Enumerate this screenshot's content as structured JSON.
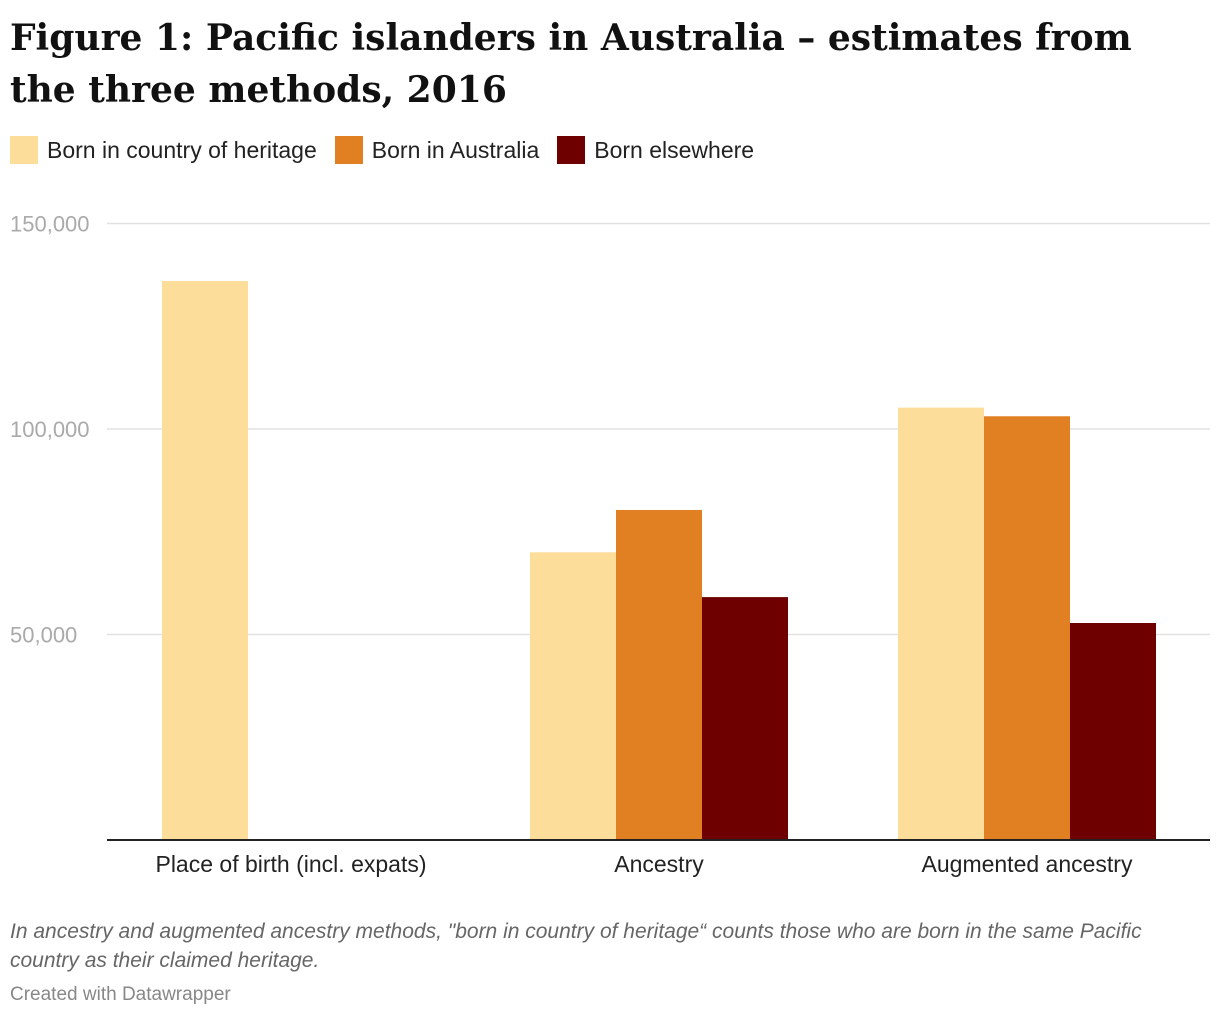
{
  "chart_data": {
    "type": "bar",
    "title": "Figure 1: Pacific islanders in Australia – estimates from the three methods, 2016",
    "categories": [
      "Place of birth (incl. expats)",
      "Ancestry",
      "Augmented ancestry"
    ],
    "series": [
      {
        "name": "Born in country of heritage",
        "color": "#fcdd9a",
        "values": [
          136000,
          70000,
          105200
        ]
      },
      {
        "name": "Born in Australia",
        "color": "#e08022",
        "values": [
          null,
          80300,
          103100
        ]
      },
      {
        "name": "Born elsewhere",
        "color": "#6e0000",
        "values": [
          null,
          59100,
          52800
        ]
      }
    ],
    "yticks": [
      {
        "value": 50000,
        "label": "50,000"
      },
      {
        "value": 100000,
        "label": "100,000"
      },
      {
        "value": 150000,
        "label": "150,000"
      }
    ],
    "ylim": [
      0,
      150000
    ],
    "grid": true,
    "legend_position": "top-left",
    "xlabel": "",
    "ylabel": ""
  },
  "note": "In ancestry and augmented ancestry methods, \"born in country of heritage“ counts those who are born in the same Pacific country as their claimed heritage.",
  "credit": "Created with Datawrapper"
}
